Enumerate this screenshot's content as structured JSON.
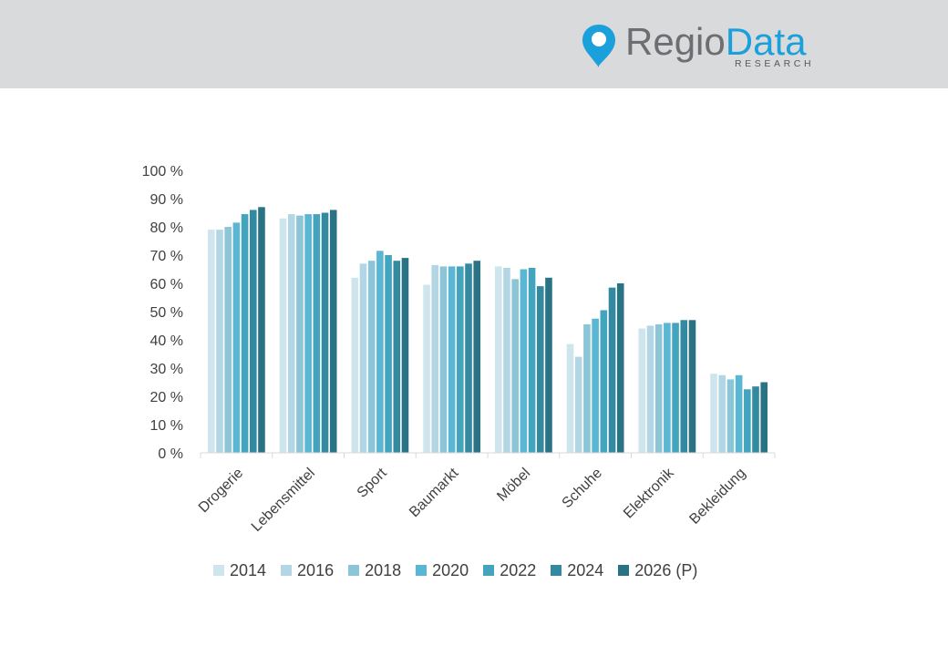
{
  "logo": {
    "name_part1": "Regio",
    "name_part2": "Data",
    "subtitle": "RESEARCH"
  },
  "colors": {
    "header_bg": "#d9dadc",
    "logo_grey": "#6d6e71",
    "logo_blue": "#1aa0db",
    "series": [
      "#cfe5ed",
      "#b2d6e3",
      "#8cc5d8",
      "#5ab7d3",
      "#43a5bd",
      "#3289a0",
      "#2a7385"
    ]
  },
  "chart_data": {
    "type": "bar",
    "categories": [
      "Drogerie",
      "Lebensmittel",
      "Sport",
      "Baumarkt",
      "Möbel",
      "Schuhe",
      "Elektronik",
      "Bekleidung"
    ],
    "series": [
      {
        "name": "2014",
        "values": [
          79,
          83,
          62,
          59.5,
          66,
          38.5,
          44,
          28
        ]
      },
      {
        "name": "2016",
        "values": [
          79,
          84.5,
          67,
          66.5,
          65.5,
          34,
          45,
          27.5
        ]
      },
      {
        "name": "2018",
        "values": [
          80,
          84,
          68,
          66,
          61.5,
          45.5,
          45.5,
          26
        ]
      },
      {
        "name": "2020",
        "values": [
          81.5,
          84.5,
          71.5,
          66,
          65,
          47.5,
          46,
          27.5
        ]
      },
      {
        "name": "2022",
        "values": [
          84.5,
          84.5,
          70,
          66,
          65.5,
          50.5,
          46,
          22.5
        ]
      },
      {
        "name": "2024",
        "values": [
          86,
          85,
          68,
          67,
          59,
          58.5,
          47,
          23.5
        ]
      },
      {
        "name": "2026 (P)",
        "values": [
          87,
          86,
          69,
          68,
          62,
          60,
          47,
          25
        ]
      }
    ],
    "ylim": [
      0,
      100
    ],
    "yticks": [
      "0 %",
      "10 %",
      "20 %",
      "30 %",
      "40 %",
      "50 %",
      "60 %",
      "70 %",
      "80 %",
      "90 %",
      "100 %"
    ],
    "grid": false,
    "legend_position": "bottom"
  }
}
